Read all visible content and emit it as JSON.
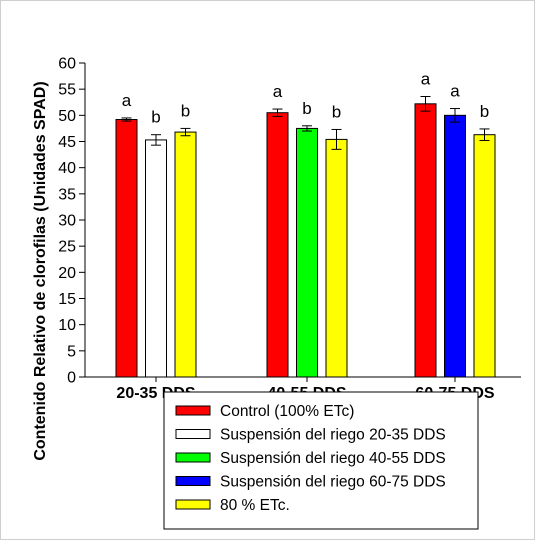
{
  "chart_data": {
    "type": "bar",
    "ylabel": "Contenido Relativo de clorofilas (Unidades SPAD)",
    "xlabel": "",
    "ylim": [
      0,
      60
    ],
    "yticks": [
      0,
      5,
      10,
      15,
      20,
      25,
      30,
      35,
      40,
      45,
      50,
      55,
      60
    ],
    "grid": false,
    "legend_position": "bottom",
    "groups": [
      {
        "label": "20-35 DDS",
        "bars": [
          {
            "series": "Control (100% ETc)",
            "value": 49.2,
            "error": 0.3,
            "letter": "a"
          },
          {
            "series": "Suspensión del riego 20-35 DDS",
            "value": 45.3,
            "error": 1.0,
            "letter": "b"
          },
          {
            "series": "80 % ETc.",
            "value": 46.8,
            "error": 0.7,
            "letter": "b"
          }
        ]
      },
      {
        "label": "40-55 DDS",
        "bars": [
          {
            "series": "Control (100% ETc)",
            "value": 50.5,
            "error": 0.7,
            "letter": "a"
          },
          {
            "series": "Suspensión del riego 40-55 DDS",
            "value": 47.5,
            "error": 0.5,
            "letter": "b"
          },
          {
            "series": "80 % ETc.",
            "value": 45.4,
            "error": 1.9,
            "letter": "b"
          }
        ]
      },
      {
        "label": "60-75 DDS",
        "bars": [
          {
            "series": "Control (100% ETc)",
            "value": 52.2,
            "error": 1.4,
            "letter": "a"
          },
          {
            "series": "Suspensión del riego 60-75 DDS",
            "value": 50.0,
            "error": 1.3,
            "letter": "a"
          },
          {
            "series": "80 % ETc.",
            "value": 46.3,
            "error": 1.1,
            "letter": "b"
          }
        ]
      }
    ],
    "legend": [
      {
        "name": "Control (100% ETc)",
        "color": "#ff0000"
      },
      {
        "name": "Suspensión del riego 20-35 DDS",
        "color": "#ffffff"
      },
      {
        "name": "Suspensión del riego 40-55 DDS",
        "color": "#00ff00"
      },
      {
        "name": "Suspensión del riego 60-75 DDS",
        "color": "#0000ff"
      },
      {
        "name": "80 % ETc.",
        "color": "#ffff00"
      }
    ]
  }
}
